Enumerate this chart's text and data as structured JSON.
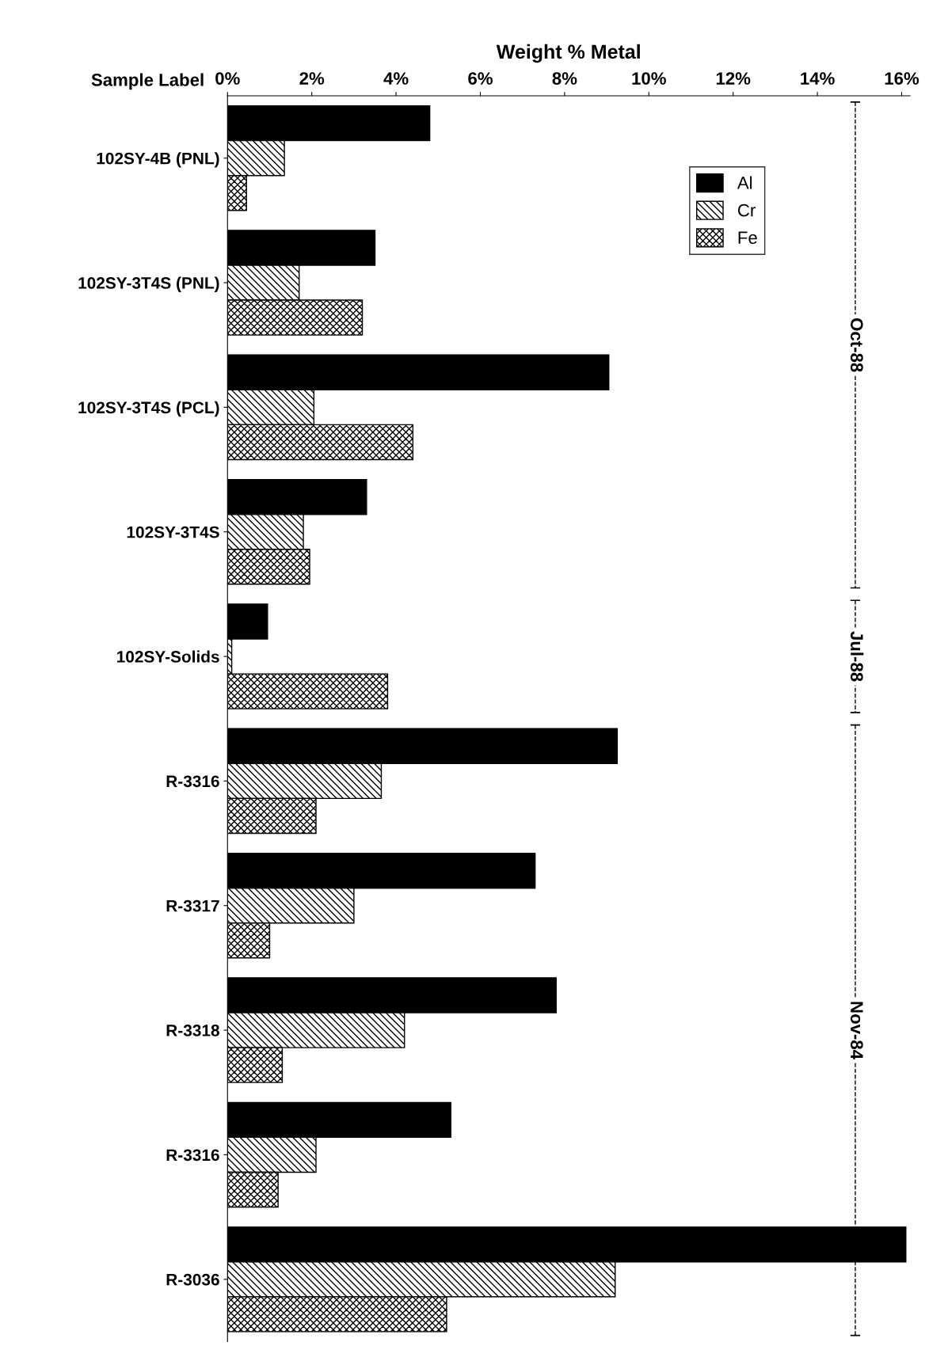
{
  "chart_data": {
    "type": "bar",
    "orientation": "horizontal",
    "xlabel": "Weight % Metal",
    "ylabel": "Sample Label",
    "categories": [
      "102SY-4B (PNL)",
      "102SY-3T4S (PNL)",
      "102SY-3T4S (PCL)",
      "102SY-3T4S",
      "102SY-Solids",
      "R-3316",
      "R-3317",
      "R-3318",
      "R-3316",
      "R-3036"
    ],
    "series": [
      {
        "name": "Al",
        "color": "#000000",
        "values": [
          4.8,
          3.5,
          9.05,
          3.3,
          0.95,
          9.25,
          7.3,
          7.8,
          5.3,
          16.1
        ]
      },
      {
        "name": "Cr",
        "color": "#000000",
        "values": [
          1.35,
          1.7,
          2.05,
          1.8,
          0.1,
          3.65,
          3.0,
          4.2,
          2.1,
          9.2
        ]
      },
      {
        "name": "Fe",
        "color": "#000000",
        "values": [
          0.45,
          3.2,
          4.4,
          1.95,
          3.8,
          2.1,
          1.0,
          1.3,
          1.2,
          5.2
        ]
      }
    ],
    "xlim": [
      0,
      16.2
    ],
    "xticks": [
      {
        "value": 0,
        "label": "0%"
      },
      {
        "value": 2,
        "label": "2%"
      },
      {
        "value": 4,
        "label": "4%"
      },
      {
        "value": 6,
        "label": "6%"
      },
      {
        "value": 8,
        "label": "8%"
      },
      {
        "value": 10,
        "label": "10%"
      },
      {
        "value": 12,
        "label": "12%"
      },
      {
        "value": 14,
        "label": "14%"
      },
      {
        "value": 16,
        "label": "16%"
      }
    ],
    "annotations": [
      "Oct-88",
      "Jul-88",
      "Nov-84"
    ],
    "legend": "top right",
    "grid": false
  }
}
